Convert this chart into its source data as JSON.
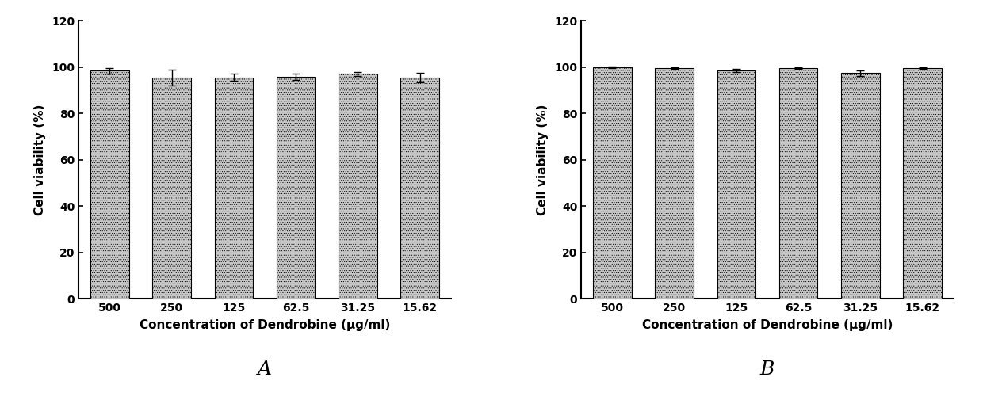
{
  "panel_A": {
    "categories": [
      "500",
      "250",
      "125",
      "62.5",
      "31.25",
      "15.62"
    ],
    "values": [
      98.5,
      95.5,
      95.5,
      95.8,
      97.0,
      95.5
    ],
    "errors": [
      1.2,
      3.5,
      1.5,
      1.5,
      1.0,
      2.0
    ],
    "label": "A"
  },
  "panel_B": {
    "categories": [
      "500",
      "250",
      "125",
      "62.5",
      "31.25",
      "15.62"
    ],
    "values": [
      100.0,
      99.5,
      98.5,
      99.5,
      97.5,
      99.5
    ],
    "errors": [
      0.3,
      0.4,
      0.8,
      0.4,
      1.2,
      0.4
    ],
    "label": "B"
  },
  "ylabel": "Cell viability (%)",
  "xlabel": "Concentration of Dendrobine (μg/ml)",
  "ylim": [
    0,
    120
  ],
  "yticks": [
    0,
    20,
    40,
    60,
    80,
    100,
    120
  ],
  "background_color": "#ffffff",
  "tick_fontsize": 10,
  "label_fontsize": 11,
  "panel_label_fontsize": 18,
  "bar_width": 0.62
}
